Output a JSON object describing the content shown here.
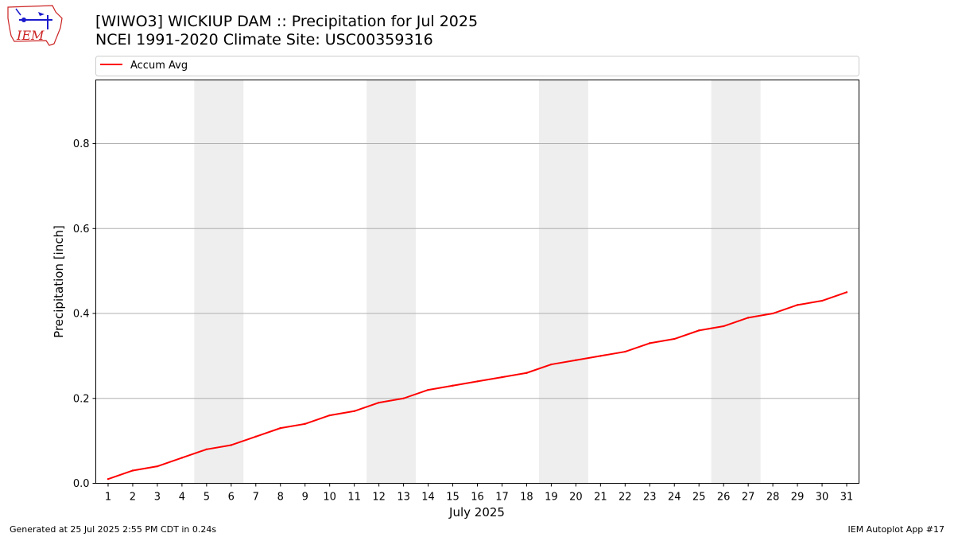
{
  "header": {
    "title_line1": "[WIWO3] WICKIUP DAM :: Precipitation for Jul 2025",
    "title_line2": "NCEI 1991-2020 Climate Site: USC00359316"
  },
  "logo": {
    "text": "IEM"
  },
  "footer": {
    "generated": "Generated at 25 Jul 2025 2:55 PM CDT in 0.24s",
    "app": "IEM Autoplot App #17"
  },
  "colors": {
    "line": "#ff0000",
    "weekend": "#eeeeee",
    "grid": "#b0b0b0",
    "logo_red": "#cc2222",
    "logo_blue": "#1a1acc"
  },
  "chart_data": {
    "type": "line",
    "xlabel": "July 2025",
    "ylabel": "Precipitation [inch]",
    "x": [
      1,
      2,
      3,
      4,
      5,
      6,
      7,
      8,
      9,
      10,
      11,
      12,
      13,
      14,
      15,
      16,
      17,
      18,
      19,
      20,
      21,
      22,
      23,
      24,
      25,
      26,
      27,
      28,
      29,
      30,
      31
    ],
    "xlim": [
      0.5,
      31.5
    ],
    "ylim": [
      0,
      0.95
    ],
    "yticks": [
      0.0,
      0.2,
      0.4,
      0.6,
      0.8
    ],
    "ytick_labels": [
      "0.0",
      "0.2",
      "0.4",
      "0.6",
      "0.8"
    ],
    "grid": "y-major",
    "legend": "top, above plot",
    "shaded_days": [
      [
        5,
        6
      ],
      [
        12,
        13
      ],
      [
        19,
        20
      ],
      [
        26,
        27
      ]
    ],
    "series": [
      {
        "name": "Accum Avg",
        "color": "#ff0000",
        "values": [
          0.01,
          0.03,
          0.04,
          0.06,
          0.08,
          0.09,
          0.11,
          0.13,
          0.14,
          0.16,
          0.17,
          0.19,
          0.2,
          0.22,
          0.23,
          0.24,
          0.25,
          0.26,
          0.28,
          0.29,
          0.3,
          0.31,
          0.33,
          0.34,
          0.36,
          0.37,
          0.39,
          0.4,
          0.42,
          0.43,
          0.45
        ]
      }
    ]
  }
}
